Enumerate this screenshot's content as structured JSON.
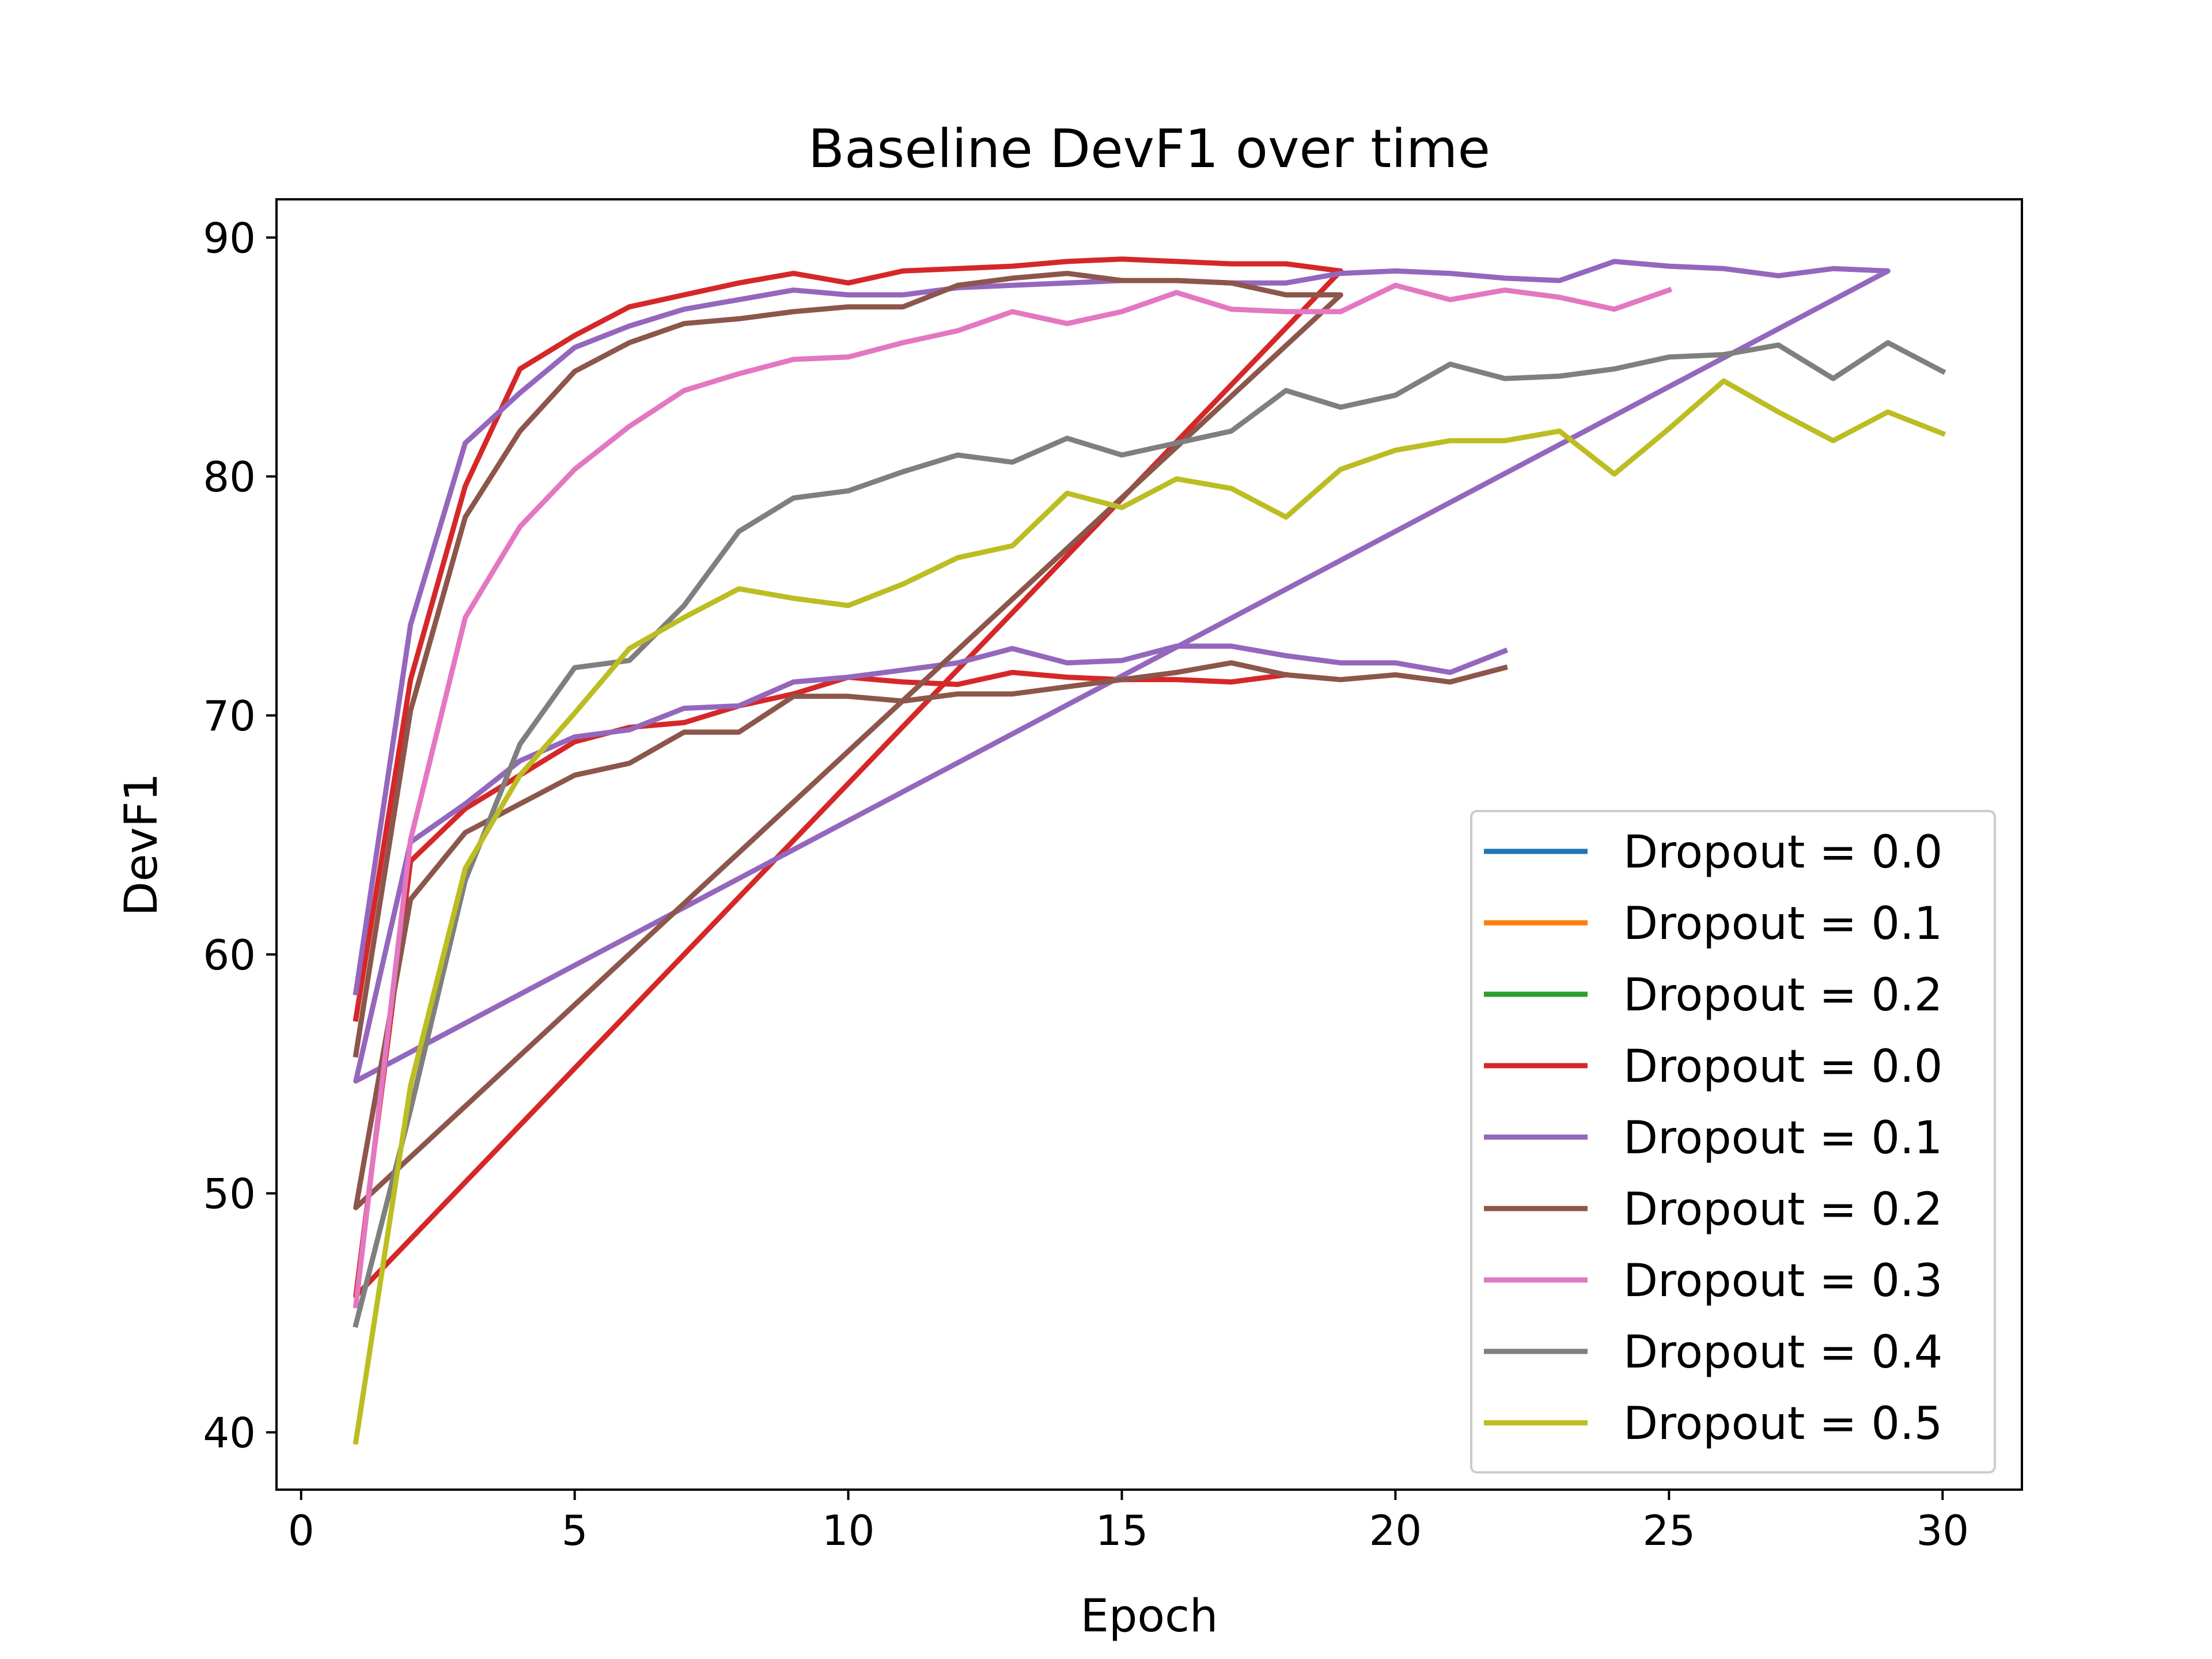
{
  "chart_data": {
    "type": "line",
    "title": "Baseline DevF1 over time",
    "xlabel": "Epoch",
    "ylabel": "DevF1",
    "xlim": [
      -0.45,
      31.45
    ],
    "ylim": [
      37.6,
      91.6
    ],
    "xticks": [
      0,
      5,
      10,
      15,
      20,
      25,
      30
    ],
    "yticks": [
      40,
      50,
      60,
      70,
      80,
      90
    ],
    "grid": false,
    "legend_position": "lower right",
    "series": [
      {
        "name": "Dropout = 0.0",
        "color": "#1f77b4",
        "x": [],
        "y": []
      },
      {
        "name": "Dropout = 0.1",
        "color": "#ff7f0e",
        "x": [],
        "y": []
      },
      {
        "name": "Dropout = 0.2",
        "color": "#2ca02c",
        "x": [],
        "y": []
      },
      {
        "name": "Dropout = 0.0",
        "color": "#d62728",
        "x": [
          1,
          2,
          3,
          4,
          5,
          6,
          7,
          8,
          9,
          10,
          11,
          12,
          13,
          14,
          15,
          16,
          17,
          18,
          19,
          1,
          2,
          3,
          4,
          5,
          6,
          7,
          8,
          9,
          10,
          11,
          12,
          13,
          14,
          15,
          16,
          17,
          18
        ],
        "y": [
          57.3,
          71.5,
          79.6,
          84.5,
          85.9,
          87.1,
          87.6,
          88.1,
          88.5,
          88.1,
          88.6,
          88.7,
          88.8,
          89.0,
          89.1,
          89.0,
          88.9,
          88.9,
          88.6,
          45.7,
          63.9,
          66.1,
          67.5,
          68.9,
          69.5,
          69.7,
          70.4,
          70.9,
          71.6,
          71.4,
          71.3,
          71.8,
          71.6,
          71.5,
          71.5,
          71.4,
          71.7
        ]
      },
      {
        "name": "Dropout = 0.1",
        "color": "#9467bd",
        "x": [
          1,
          2,
          3,
          4,
          5,
          6,
          7,
          8,
          9,
          10,
          11,
          12,
          13,
          14,
          15,
          16,
          17,
          18,
          19,
          20,
          21,
          22,
          23,
          24,
          25,
          26,
          27,
          28,
          29,
          1,
          2,
          3,
          4,
          5,
          6,
          7,
          8,
          9,
          10,
          11,
          12,
          13,
          14,
          15,
          16,
          17,
          18,
          19,
          20,
          21,
          22
        ],
        "y": [
          58.4,
          73.8,
          81.4,
          83.5,
          85.4,
          86.3,
          87.0,
          87.4,
          87.8,
          87.6,
          87.6,
          87.9,
          88.0,
          88.1,
          88.2,
          88.2,
          88.1,
          88.1,
          88.5,
          88.6,
          88.5,
          88.3,
          88.2,
          89.0,
          88.8,
          88.7,
          88.4,
          88.7,
          88.6,
          54.7,
          64.7,
          66.3,
          68.1,
          69.1,
          69.4,
          70.3,
          70.4,
          71.4,
          71.6,
          71.9,
          72.2,
          72.8,
          72.2,
          72.3,
          72.9,
          72.9,
          72.5,
          72.2,
          72.2,
          71.8,
          72.7
        ]
      },
      {
        "name": "Dropout = 0.2",
        "color": "#8c564b",
        "x": [
          1,
          2,
          3,
          4,
          5,
          6,
          7,
          8,
          9,
          10,
          11,
          12,
          13,
          14,
          15,
          16,
          17,
          18,
          19,
          1,
          2,
          3,
          4,
          5,
          6,
          7,
          8,
          9,
          10,
          11,
          12,
          13,
          14,
          15,
          16,
          17,
          18,
          19,
          20,
          21,
          22
        ],
        "y": [
          55.8,
          70.2,
          78.3,
          81.9,
          84.4,
          85.6,
          86.4,
          86.6,
          86.9,
          87.1,
          87.1,
          88.0,
          88.3,
          88.5,
          88.2,
          88.2,
          88.1,
          87.6,
          87.6,
          49.4,
          62.3,
          65.1,
          66.3,
          67.5,
          68.0,
          69.3,
          69.3,
          70.8,
          70.8,
          70.6,
          70.9,
          70.9,
          71.2,
          71.5,
          71.8,
          72.2,
          71.7,
          71.5,
          71.7,
          71.4,
          72.0
        ]
      },
      {
        "name": "Dropout = 0.3",
        "color": "#e377c2",
        "x": [
          1,
          2,
          3,
          4,
          5,
          6,
          7,
          8,
          9,
          10,
          11,
          12,
          13,
          14,
          15,
          16,
          17,
          18,
          19,
          20,
          21,
          22,
          23,
          24,
          25
        ],
        "y": [
          45.3,
          64.8,
          74.1,
          77.9,
          80.3,
          82.1,
          83.6,
          84.3,
          84.9,
          85.0,
          85.6,
          86.1,
          86.9,
          86.4,
          86.9,
          87.7,
          87.0,
          86.9,
          86.9,
          88.0,
          87.4,
          87.8,
          87.5,
          87.0,
          87.8
        ]
      },
      {
        "name": "Dropout = 0.4",
        "color": "#7f7f7f",
        "x": [
          1,
          2,
          3,
          4,
          5,
          6,
          7,
          8,
          9,
          10,
          11,
          12,
          13,
          14,
          15,
          16,
          17,
          18,
          19,
          20,
          21,
          22,
          23,
          24,
          25,
          26,
          27,
          28,
          29,
          30
        ],
        "y": [
          44.5,
          53.5,
          63.1,
          68.8,
          72.0,
          72.3,
          74.6,
          77.7,
          79.1,
          79.4,
          80.2,
          80.9,
          80.6,
          81.6,
          80.9,
          81.4,
          81.9,
          83.6,
          82.9,
          83.4,
          84.7,
          84.1,
          84.2,
          84.5,
          85.0,
          85.1,
          85.5,
          84.1,
          85.6,
          84.4
        ]
      },
      {
        "name": "Dropout = 0.5",
        "color": "#bcbd22",
        "x": [
          1,
          2,
          3,
          4,
          5,
          6,
          7,
          8,
          9,
          10,
          11,
          12,
          13,
          14,
          15,
          16,
          17,
          18,
          19,
          20,
          21,
          22,
          23,
          24,
          25,
          26,
          27,
          28,
          29,
          30
        ],
        "y": [
          39.6,
          54.5,
          63.6,
          67.5,
          70.1,
          72.8,
          74.1,
          75.3,
          74.9,
          74.6,
          75.5,
          76.6,
          77.1,
          79.3,
          78.7,
          79.9,
          79.5,
          78.3,
          80.3,
          81.1,
          81.5,
          81.5,
          81.9,
          80.1,
          82.0,
          84.0,
          82.7,
          81.5,
          82.7,
          81.8
        ]
      }
    ]
  }
}
